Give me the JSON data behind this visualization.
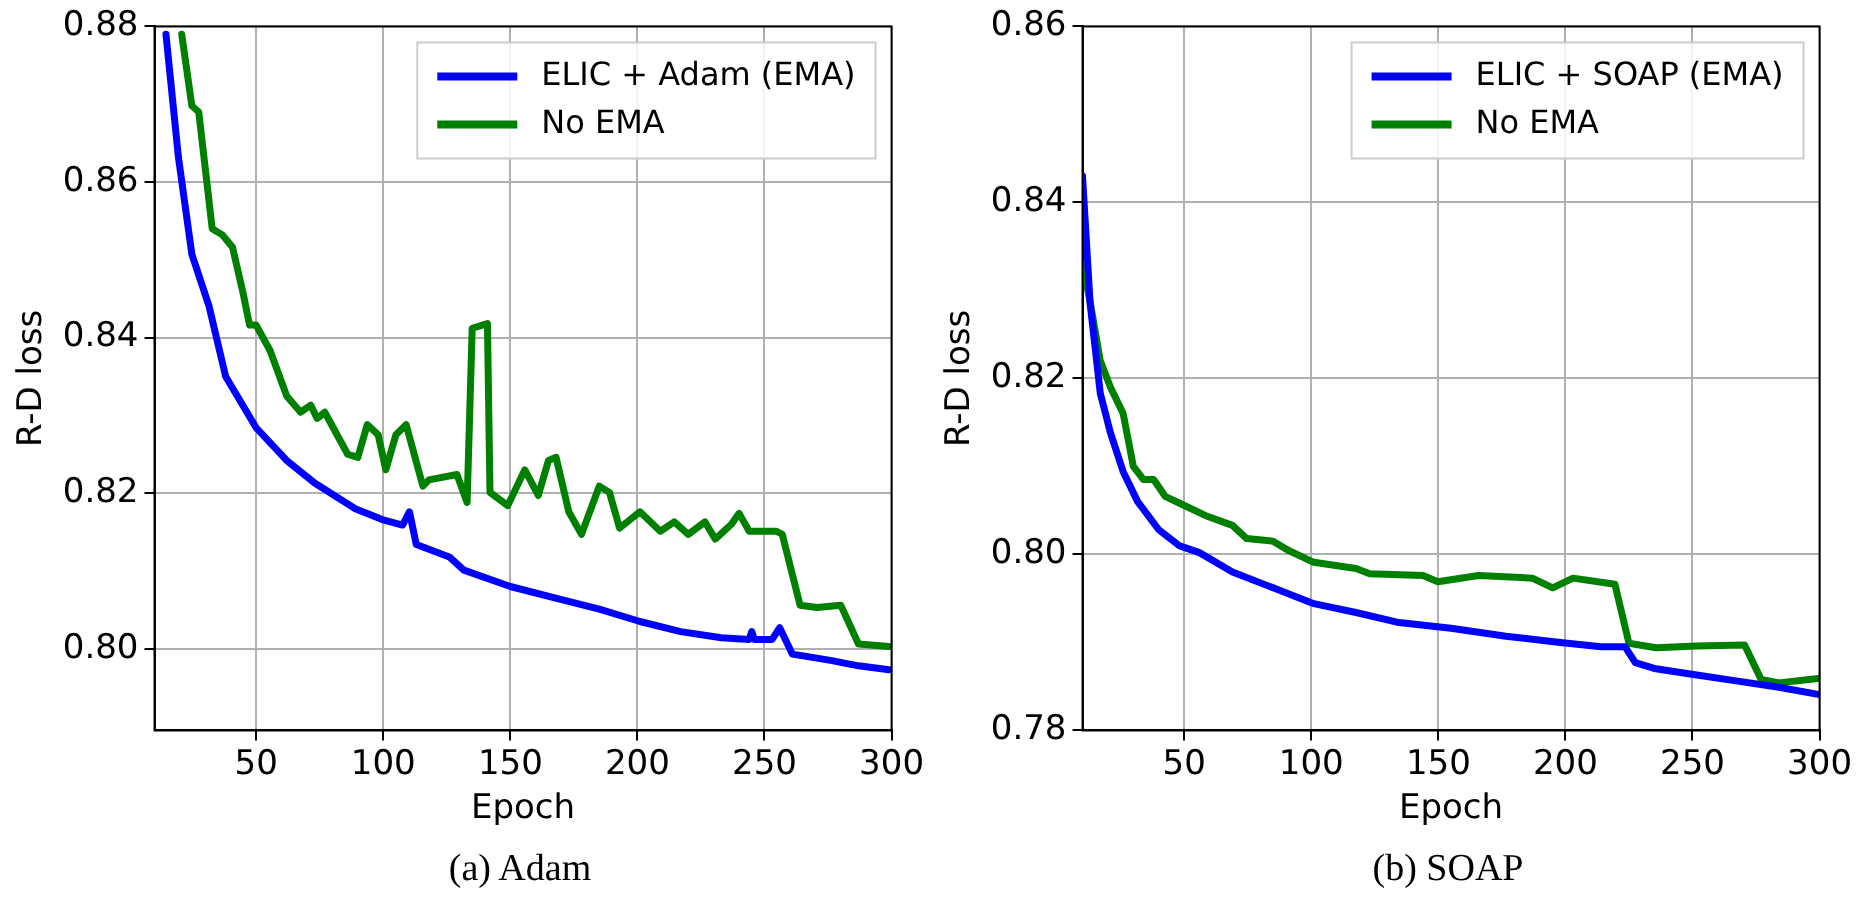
{
  "chart_data": [
    {
      "type": "line",
      "xlabel": "Epoch",
      "ylabel": "R-D loss",
      "annotations": [
        "(a)  Adam"
      ],
      "xlim": [
        10,
        300
      ],
      "ylim": [
        0.7895,
        0.88
      ],
      "xticks": [
        50,
        100,
        150,
        200,
        250,
        300
      ],
      "yticks": [
        {
          "value": 0.8,
          "label": "0.80"
        },
        {
          "value": 0.82,
          "label": "0.82"
        },
        {
          "value": 0.84,
          "label": "0.84"
        },
        {
          "value": 0.86,
          "label": "0.86"
        },
        {
          "value": 0.88,
          "label": "0.88"
        }
      ],
      "grid": true,
      "legend": "top right",
      "marker": "none",
      "line_style": "solid",
      "series": [
        {
          "name": "ELIC + Adam (EMA)",
          "color": "#0000ff",
          "x": [
            14.5,
            19.4,
            24.7,
            31.4,
            38,
            50,
            62,
            73,
            89,
            99.6,
            107.6,
            110.3,
            113,
            126,
            131.7,
            150,
            169,
            185,
            201,
            217,
            233,
            244,
            245,
            246,
            253,
            256,
            261,
            276,
            287,
            299
          ],
          "values": [
            0.879,
            0.8632,
            0.8507,
            0.8441,
            0.835,
            0.8284,
            0.8242,
            0.8213,
            0.818,
            0.8166,
            0.8159,
            0.8176,
            0.8134,
            0.8118,
            0.8101,
            0.808,
            0.8064,
            0.8051,
            0.8035,
            0.8022,
            0.8014,
            0.8012,
            0.8022,
            0.8012,
            0.8012,
            0.8027,
            0.7993,
            0.7985,
            0.7978,
            0.7973
          ]
        },
        {
          "name": "No EMA",
          "color": "#008000",
          "x": [
            20.7,
            24.7,
            27.4,
            32.7,
            36.7,
            40.7,
            44.8,
            47.4,
            50,
            55.5,
            62,
            67.5,
            71.5,
            74,
            77,
            86,
            90,
            93.7,
            98,
            101,
            105,
            109,
            115.6,
            118,
            129,
            133,
            135,
            141,
            142,
            149,
            155.7,
            161,
            165,
            168,
            173,
            178,
            185,
            189,
            193,
            201,
            209,
            214.5,
            220,
            226.6,
            230.6,
            237,
            240,
            244,
            254.7,
            257,
            264,
            270.7,
            280,
            287,
            299
          ],
          "values": [
            0.879,
            0.8698,
            0.869,
            0.854,
            0.8532,
            0.8516,
            0.8458,
            0.8416,
            0.8416,
            0.8383,
            0.8325,
            0.8304,
            0.8313,
            0.8296,
            0.8304,
            0.825,
            0.8246,
            0.8288,
            0.8275,
            0.823,
            0.8275,
            0.8288,
            0.8209,
            0.8217,
            0.8224,
            0.8188,
            0.8412,
            0.8418,
            0.8201,
            0.8184,
            0.823,
            0.8197,
            0.8242,
            0.8246,
            0.8176,
            0.8147,
            0.8209,
            0.8201,
            0.8155,
            0.8176,
            0.8151,
            0.8163,
            0.8147,
            0.8163,
            0.8141,
            0.816,
            0.8174,
            0.8151,
            0.8151,
            0.8147,
            0.8056,
            0.8053,
            0.8056,
            0.8006,
            0.8003
          ]
        }
      ]
    },
    {
      "type": "line",
      "xlabel": "Epoch",
      "ylabel": "R-D loss",
      "annotations": [
        "(b)  SOAP"
      ],
      "xlim": [
        10,
        300
      ],
      "ylim": [
        0.78,
        0.86
      ],
      "xticks": [
        50,
        100,
        150,
        200,
        250,
        300
      ],
      "yticks": [
        {
          "value": 0.78,
          "label": "0.78"
        },
        {
          "value": 0.8,
          "label": "0.80"
        },
        {
          "value": 0.82,
          "label": "0.82"
        },
        {
          "value": 0.84,
          "label": "0.84"
        },
        {
          "value": 0.86,
          "label": "0.86"
        }
      ],
      "grid": true,
      "legend": "top right",
      "marker": "none",
      "line_style": "solid",
      "series": [
        {
          "name": "ELIC + SOAP (EMA)",
          "color": "#0000ff",
          "x": [
            10,
            13,
            17,
            21,
            26,
            31.7,
            40,
            48,
            56,
            69,
            85,
            101,
            117.6,
            133.7,
            155,
            176.6,
            198,
            214,
            223.5,
            227.5,
            235.6,
            251.7,
            267.8,
            284,
            299.4
          ],
          "values": [
            0.843,
            0.8285,
            0.8183,
            0.8138,
            0.8094,
            0.806,
            0.8028,
            0.801,
            0.8002,
            0.798,
            0.7962,
            0.7944,
            0.7934,
            0.7923,
            0.7916,
            0.7907,
            0.79,
            0.7895,
            0.7895,
            0.7877,
            0.787,
            0.7863,
            0.7856,
            0.7849,
            0.7841
          ]
        },
        {
          "name": "No EMA",
          "color": "#008000",
          "x": [
            10,
            13,
            17,
            21,
            26,
            30,
            34,
            38,
            42.5,
            50.5,
            58.5,
            69,
            74.6,
            85,
            90.7,
            101,
            117.6,
            123,
            144,
            149.8,
            165.8,
            187,
            195,
            203,
            219.5,
            225,
            235.6,
            251.7,
            270.5,
            277,
            284,
            299.4
          ],
          "values": [
            0.833,
            0.8287,
            0.822,
            0.819,
            0.816,
            0.81,
            0.8085,
            0.8085,
            0.8066,
            0.8055,
            0.8044,
            0.8033,
            0.8018,
            0.8015,
            0.8005,
            0.7991,
            0.7984,
            0.7978,
            0.7976,
            0.7969,
            0.7976,
            0.7973,
            0.7962,
            0.7973,
            0.7966,
            0.7899,
            0.7894,
            0.7896,
            0.7897,
            0.7858,
            0.7854,
            0.7859
          ]
        }
      ]
    }
  ]
}
